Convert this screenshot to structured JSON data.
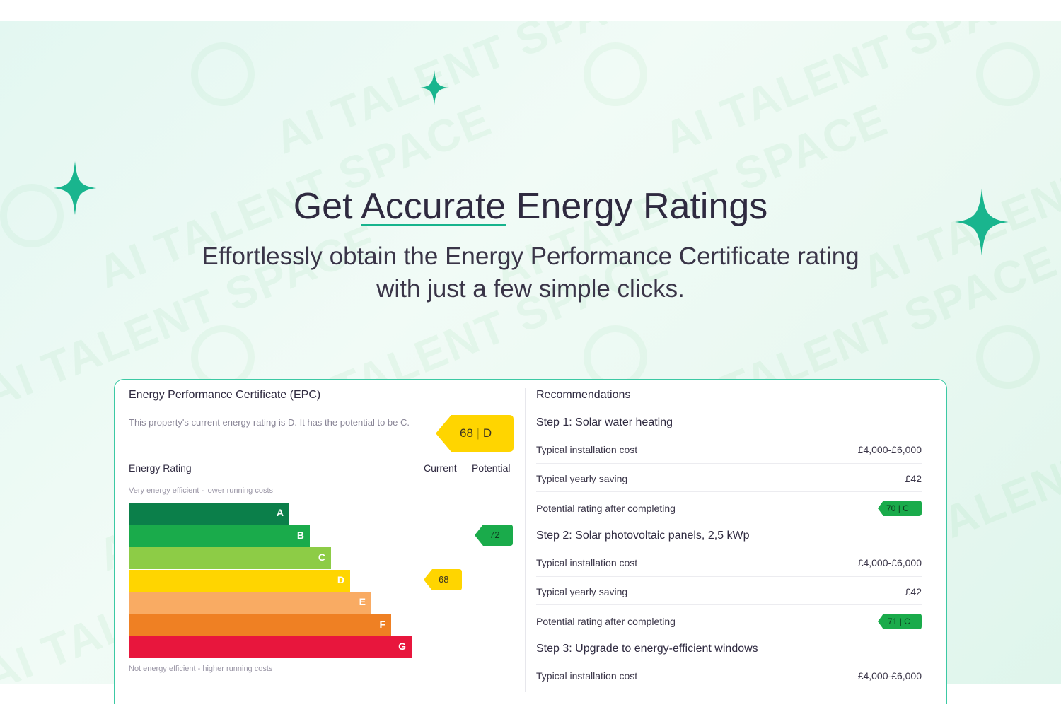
{
  "hero": {
    "title_before": "Get ",
    "title_accent": "Accurate",
    "title_after": " Energy Ratings",
    "subtitle_line1": "Effortlessly obtain the Energy Performance Certificate rating",
    "subtitle_line2": "with just a few simple clicks.",
    "watermark_text": "AI TALENT SPACE",
    "accent_color": "#1dbf96"
  },
  "epc": {
    "title": "Energy Performance Certificate (EPC)",
    "description": "This property's current energy rating is D. It has the potential to be C.",
    "current_tag": {
      "score": "68",
      "separator": "|",
      "letter": "D",
      "color": "#ffd500"
    },
    "energy_rating_label": "Energy Rating",
    "col_current": "Current",
    "col_potential": "Potential",
    "efficient_label": "Very energy efficient - lower running costs",
    "inefficient_label": "Not energy efficient - higher running costs",
    "bands": [
      {
        "letter": "A",
        "color": "#0b7f4a"
      },
      {
        "letter": "B",
        "color": "#1aab4b"
      },
      {
        "letter": "C",
        "color": "#8dcc46"
      },
      {
        "letter": "D",
        "color": "#ffd500"
      },
      {
        "letter": "E",
        "color": "#f9ab63"
      },
      {
        "letter": "F",
        "color": "#ef8023"
      },
      {
        "letter": "G",
        "color": "#e8163d"
      }
    ],
    "current_pointer": {
      "value": "68",
      "color": "#ffd500"
    },
    "potential_pointer": {
      "value": "72",
      "color": "#1aab4b"
    }
  },
  "recommendations": {
    "title": "Recommendations",
    "steps": [
      {
        "title": "Step 1: Solar water heating",
        "install_label": "Typical installation cost",
        "install_value": "£4,000-£6,000",
        "saving_label": "Typical yearly saving",
        "saving_value": "£42",
        "potential_label": "Potential rating after completing",
        "potential_score": "70",
        "potential_letter": "C"
      },
      {
        "title": "Step 2: Solar photovoltaic panels, 2,5 kWp",
        "install_label": "Typical installation cost",
        "install_value": "£4,000-£6,000",
        "saving_label": "Typical yearly saving",
        "saving_value": "£42",
        "potential_label": "Potential rating after completing",
        "potential_score": "71",
        "potential_letter": "C"
      },
      {
        "title": "Step 3: Upgrade to energy-efficient windows",
        "install_label": "Typical installation cost",
        "install_value": "£4,000-£6,000"
      }
    ],
    "tag_color": "#1aab4b",
    "tag_separator": "|"
  }
}
